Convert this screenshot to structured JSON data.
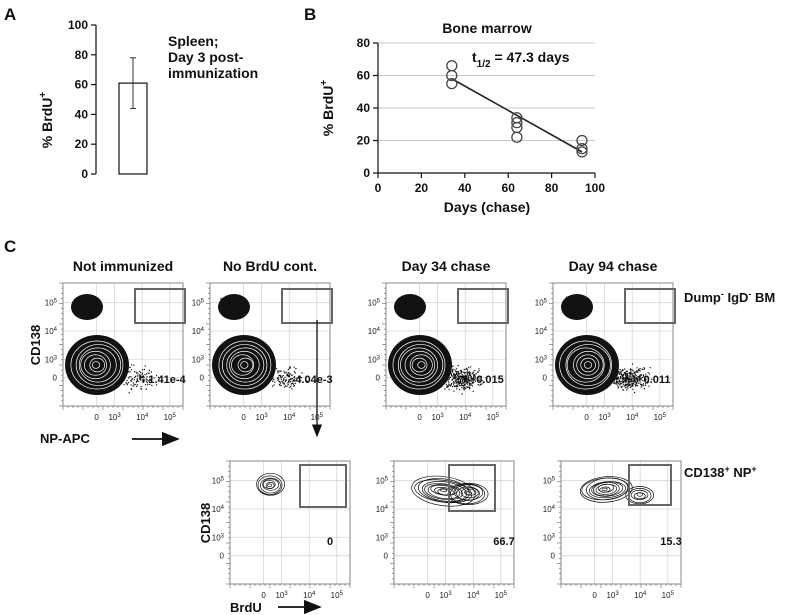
{
  "panel_labels": {
    "a": "A",
    "b": "B",
    "c": "C"
  },
  "colors": {
    "ink": "#111111",
    "gate": "#666666",
    "grid": "#bbbbbb"
  },
  "chart_data": [
    {
      "type": "bar",
      "panel": "A",
      "categories": [
        ""
      ],
      "values": [
        61
      ],
      "error": [
        17
      ],
      "ylabel": "% BrdU",
      "ylabel_sup": "+",
      "ylim": [
        0,
        100
      ],
      "yticks": [
        "0",
        "20",
        "40",
        "60",
        "80",
        "100"
      ],
      "annotation": [
        "Spleen;",
        "Day 3 post-",
        "immunization"
      ]
    },
    {
      "type": "scatter",
      "panel": "B",
      "title": "Bone marrow",
      "xlabel": "Days (chase)",
      "ylabel": "% BrdU",
      "ylabel_sup": "+",
      "xlim": [
        0,
        100
      ],
      "ylim": [
        0,
        80
      ],
      "xticks": [
        "0",
        "20",
        "40",
        "60",
        "80",
        "100"
      ],
      "yticks": [
        "0",
        "20",
        "40",
        "60",
        "80"
      ],
      "grid": true,
      "points": [
        {
          "x": 34,
          "y": 66
        },
        {
          "x": 34,
          "y": 60
        },
        {
          "x": 34,
          "y": 55
        },
        {
          "x": 64,
          "y": 34
        },
        {
          "x": 64,
          "y": 31
        },
        {
          "x": 64,
          "y": 28
        },
        {
          "x": 64,
          "y": 22
        },
        {
          "x": 94,
          "y": 20
        },
        {
          "x": 94,
          "y": 15
        },
        {
          "x": 94,
          "y": 13
        }
      ],
      "fit": [
        {
          "x": 34,
          "y": 58
        },
        {
          "x": 94,
          "y": 13
        }
      ],
      "annotation": {
        "t": "t",
        "sub": "1/2",
        "rest": " = 47.3 days"
      }
    }
  ],
  "flow": {
    "ticks_x": [
      "0",
      "10",
      "10",
      "10"
    ],
    "ticks_x_sup": [
      "",
      "3",
      "4",
      "5"
    ],
    "ticks_y": [
      "0",
      "10",
      "10",
      "10"
    ],
    "ticks_y_sup": [
      "",
      "3",
      "4",
      "5"
    ],
    "top_row": [
      {
        "title": "Not immunized",
        "value": "1.41e-4"
      },
      {
        "title": "No BrdU cont.",
        "value": "4.04e-3"
      },
      {
        "title": "Day 34 chase",
        "value": "0.015"
      },
      {
        "title": "Day 94 chase",
        "value": "0.011"
      }
    ],
    "bottom_row": [
      {
        "value": "0"
      },
      {
        "value": "66.7"
      },
      {
        "value": "15.3"
      }
    ],
    "top_ylabel": "CD138",
    "top_xlabel": "NP-APC",
    "bottom_ylabel": "CD138",
    "bottom_xlabel": "BrdU",
    "row_label_top": {
      "a": "Dump",
      "a_sup": "-",
      "b": " IgD",
      "b_sup": "-",
      "c": " BM"
    },
    "row_label_bottom": {
      "a": "CD138",
      "a_sup": "+",
      "b": " NP",
      "b_sup": "+"
    }
  }
}
